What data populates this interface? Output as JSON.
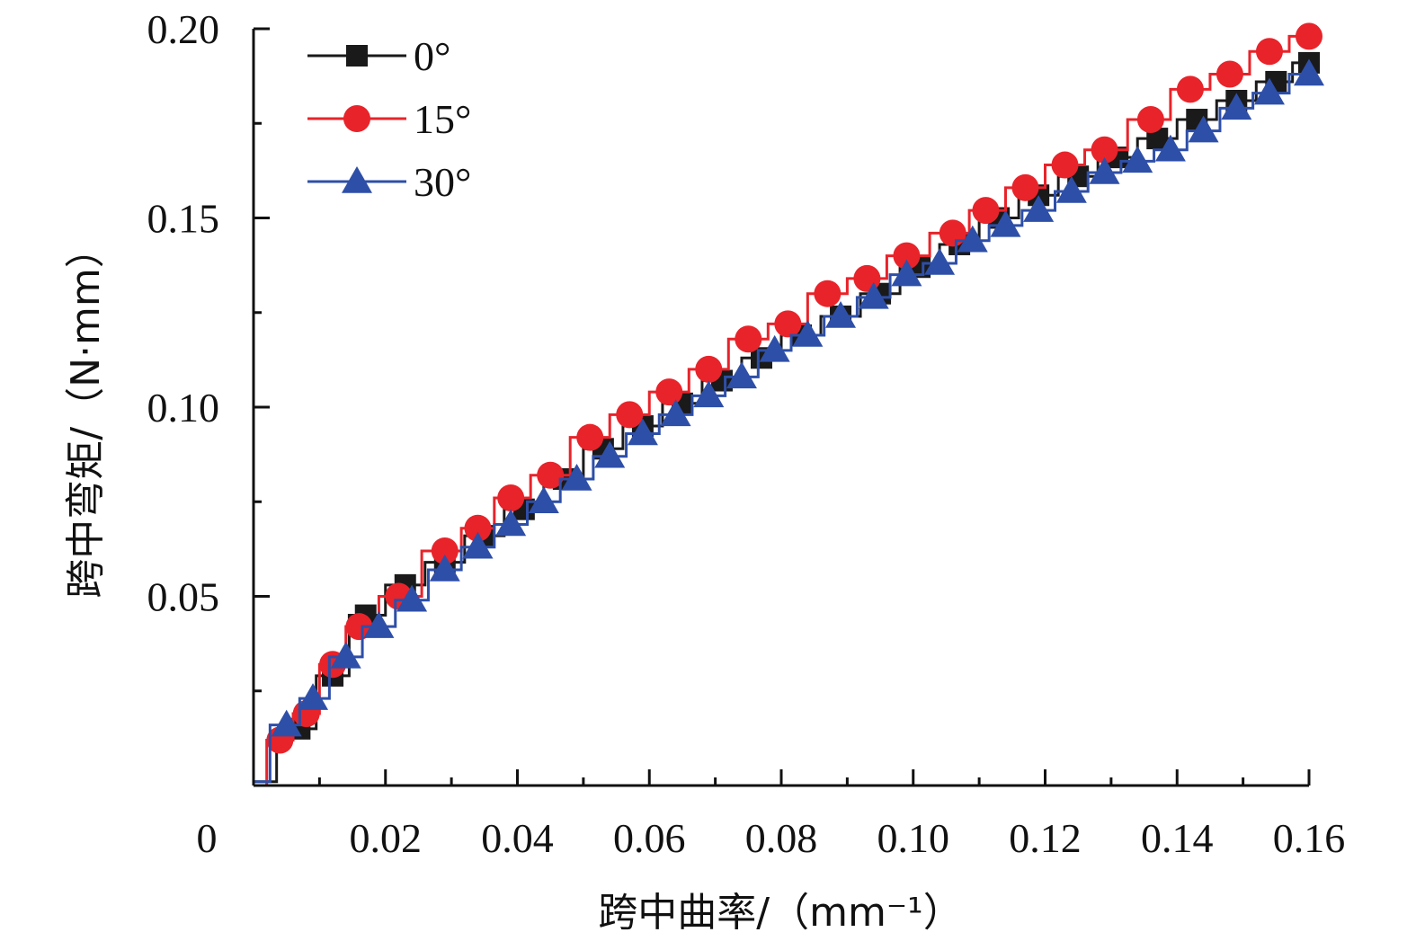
{
  "chart_data": {
    "type": "line",
    "xlabel": "跨中曲率/（mm⁻¹）",
    "ylabel": "跨中弯矩/（N·mm）",
    "xlim": [
      0,
      0.16
    ],
    "ylim": [
      0,
      0.2
    ],
    "x_ticks": [
      "0",
      "0.02",
      "0.04",
      "0.06",
      "0.08",
      "0.10",
      "0.12",
      "0.14",
      "0.16"
    ],
    "y_ticks": [
      "0.05",
      "0.10",
      "0.15",
      "0.20"
    ],
    "legend_position": "top-left",
    "grid": false,
    "series": [
      {
        "name": "0°",
        "color": "#1a1a1a",
        "marker": "square",
        "x": [
          0.0,
          0.007,
          0.012,
          0.017,
          0.023,
          0.029,
          0.035,
          0.041,
          0.047,
          0.053,
          0.059,
          0.065,
          0.071,
          0.077,
          0.083,
          0.089,
          0.095,
          0.101,
          0.107,
          0.113,
          0.119,
          0.125,
          0.131,
          0.137,
          0.143,
          0.149,
          0.155,
          0.16
        ],
        "y": [
          0.001,
          0.015,
          0.029,
          0.045,
          0.053,
          0.059,
          0.066,
          0.073,
          0.081,
          0.089,
          0.095,
          0.101,
          0.107,
          0.113,
          0.119,
          0.124,
          0.13,
          0.137,
          0.143,
          0.15,
          0.156,
          0.161,
          0.166,
          0.171,
          0.176,
          0.181,
          0.186,
          0.191
        ]
      },
      {
        "name": "15°",
        "color": "#e8232a",
        "marker": "circle",
        "x": [
          0.0,
          0.004,
          0.008,
          0.012,
          0.016,
          0.022,
          0.029,
          0.034,
          0.039,
          0.045,
          0.051,
          0.057,
          0.063,
          0.069,
          0.075,
          0.081,
          0.087,
          0.093,
          0.099,
          0.106,
          0.111,
          0.117,
          0.123,
          0.129,
          0.136,
          0.142,
          0.148,
          0.154,
          0.16
        ],
        "y": [
          0.0,
          0.012,
          0.019,
          0.032,
          0.042,
          0.05,
          0.062,
          0.068,
          0.076,
          0.082,
          0.092,
          0.098,
          0.104,
          0.11,
          0.118,
          0.122,
          0.13,
          0.134,
          0.14,
          0.146,
          0.152,
          0.158,
          0.164,
          0.168,
          0.176,
          0.184,
          0.188,
          0.194,
          0.198
        ]
      },
      {
        "name": "30°",
        "color": "#2e4fa8",
        "marker": "triangle",
        "x": [
          0.0,
          0.005,
          0.009,
          0.014,
          0.019,
          0.024,
          0.029,
          0.034,
          0.039,
          0.044,
          0.049,
          0.054,
          0.059,
          0.064,
          0.069,
          0.074,
          0.079,
          0.084,
          0.089,
          0.094,
          0.099,
          0.104,
          0.109,
          0.114,
          0.119,
          0.124,
          0.129,
          0.134,
          0.139,
          0.144,
          0.149,
          0.154,
          0.16
        ],
        "y": [
          0.001,
          0.016,
          0.023,
          0.034,
          0.042,
          0.049,
          0.057,
          0.063,
          0.069,
          0.075,
          0.081,
          0.087,
          0.093,
          0.098,
          0.103,
          0.108,
          0.115,
          0.119,
          0.124,
          0.129,
          0.135,
          0.138,
          0.144,
          0.148,
          0.152,
          0.157,
          0.162,
          0.165,
          0.168,
          0.173,
          0.179,
          0.183,
          0.188
        ]
      }
    ]
  }
}
